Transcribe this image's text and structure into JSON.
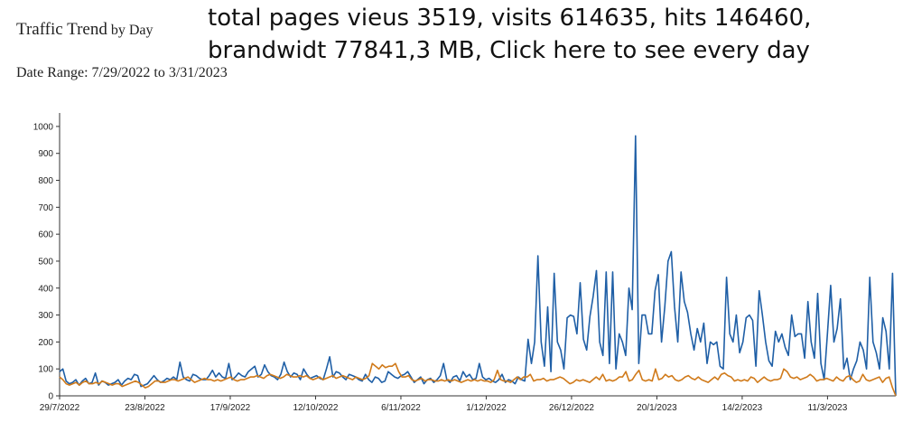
{
  "header": {
    "title": "Traffic Trend",
    "title_suffix": "by Day",
    "date_range": "Date Range: 7/29/2022 to 3/31/2023",
    "summary": "total pages vieus 3519, visits 614635, hits 146460, brandwidt 77841,3 MB, Click here to see every day"
  },
  "colors": {
    "series_a": "#1f5fa6",
    "series_b": "#d07a1a",
    "axis": "#333333"
  },
  "chart_data": {
    "type": "line",
    "title": "",
    "xlabel": "",
    "ylabel": "",
    "ylim": [
      0,
      1050
    ],
    "yticks": [
      0,
      100,
      200,
      300,
      400,
      500,
      600,
      700,
      800,
      900,
      1000
    ],
    "xlim": [
      0,
      245
    ],
    "xticks": [
      {
        "x": 0,
        "label": "29/7/2022"
      },
      {
        "x": 25,
        "label": "23/8/2022"
      },
      {
        "x": 50,
        "label": "17/9/2022"
      },
      {
        "x": 75,
        "label": "12/10/2022"
      },
      {
        "x": 100,
        "label": "6/11/2022"
      },
      {
        "x": 125,
        "label": "1/12/2022"
      },
      {
        "x": 150,
        "label": "26/12/2022"
      },
      {
        "x": 175,
        "label": "20/1/2023"
      },
      {
        "x": 200,
        "label": "14/2/2023"
      },
      {
        "x": 225,
        "label": "11/3/2023"
      }
    ],
    "grid": false,
    "legend": "none",
    "series": [
      {
        "color": "#1f5fa6",
        "values": [
          90,
          100,
          55,
          45,
          50,
          60,
          40,
          55,
          65,
          45,
          50,
          85,
          40,
          55,
          50,
          40,
          45,
          50,
          60,
          40,
          55,
          65,
          60,
          80,
          75,
          35,
          40,
          45,
          60,
          75,
          60,
          50,
          55,
          65,
          60,
          70,
          60,
          125,
          70,
          60,
          55,
          80,
          75,
          65,
          60,
          60,
          75,
          95,
          70,
          85,
          70,
          65,
          120,
          60,
          70,
          85,
          75,
          70,
          90,
          100,
          110,
          70,
          80,
          115,
          90,
          75,
          70,
          60,
          80,
          125,
          90,
          70,
          85,
          80,
          60,
          100,
          80,
          65,
          70,
          75,
          65,
          60,
          100,
          145,
          70,
          90,
          85,
          70,
          60,
          80,
          75,
          70,
          60,
          55,
          80,
          60,
          50,
          70,
          65,
          50,
          55,
          90,
          80,
          70,
          65,
          75,
          80,
          90,
          70,
          50,
          60,
          70,
          45,
          60,
          65,
          50,
          60,
          75,
          120,
          60,
          50,
          70,
          75,
          55,
          90,
          70,
          80,
          60,
          65,
          120,
          70,
          60,
          65,
          55,
          50,
          60,
          80,
          50,
          60,
          55,
          45,
          70,
          60,
          55,
          210,
          120,
          200,
          520,
          200,
          110,
          330,
          90,
          455,
          200,
          170,
          100,
          290,
          300,
          295,
          230,
          420,
          210,
          170,
          295,
          370,
          465,
          200,
          150,
          460,
          120,
          460,
          100,
          230,
          200,
          150,
          400,
          320,
          965,
          120,
          300,
          300,
          230,
          230,
          390,
          450,
          200,
          330,
          500,
          535,
          330,
          200,
          460,
          350,
          310,
          230,
          170,
          250,
          200,
          270,
          120,
          200,
          190,
          200,
          110,
          100,
          440,
          230,
          200,
          300,
          160,
          200,
          290,
          300,
          280,
          110,
          390,
          300,
          200,
          130,
          110,
          240,
          200,
          230,
          180,
          150,
          300,
          220,
          230,
          230,
          140,
          350,
          200,
          140,
          380,
          120,
          60,
          230,
          410,
          200,
          250,
          360,
          100,
          140,
          60,
          100,
          130,
          200,
          170,
          100,
          440,
          200,
          160,
          100,
          290,
          240,
          100,
          455,
          0
        ],
        "name": ""
      },
      {
        "color": "#d07a1a",
        "values": [
          70,
          60,
          45,
          40,
          45,
          50,
          40,
          50,
          55,
          45,
          45,
          50,
          45,
          55,
          50,
          45,
          40,
          45,
          45,
          35,
          40,
          45,
          50,
          55,
          50,
          40,
          30,
          35,
          45,
          55,
          55,
          50,
          50,
          55,
          60,
          60,
          55,
          60,
          65,
          70,
          60,
          50,
          55,
          60,
          65,
          60,
          60,
          55,
          60,
          55,
          60,
          65,
          70,
          60,
          55,
          60,
          60,
          65,
          70,
          70,
          75,
          70,
          65,
          75,
          80,
          75,
          70,
          65,
          70,
          80,
          75,
          70,
          70,
          75,
          70,
          75,
          65,
          60,
          65,
          70,
          60,
          65,
          70,
          75,
          65,
          70,
          75,
          70,
          65,
          60,
          70,
          65,
          60,
          65,
          75,
          120,
          110,
          100,
          115,
          105,
          110,
          110,
          120,
          90,
          70,
          70,
          75,
          60,
          55,
          60,
          65,
          55,
          60,
          60,
          55,
          55,
          60,
          55,
          60,
          55,
          60,
          55,
          50,
          55,
          60,
          55,
          60,
          55,
          60,
          55,
          55,
          50,
          60,
          95,
          60,
          55,
          55,
          50,
          60,
          70,
          60,
          70,
          70,
          80,
          55,
          60,
          60,
          65,
          55,
          60,
          60,
          65,
          70,
          65,
          55,
          45,
          50,
          60,
          55,
          60,
          55,
          50,
          60,
          70,
          60,
          80,
          55,
          60,
          55,
          60,
          70,
          70,
          90,
          55,
          60,
          80,
          95,
          60,
          55,
          60,
          55,
          100,
          60,
          65,
          80,
          70,
          75,
          60,
          55,
          60,
          70,
          75,
          65,
          60,
          70,
          60,
          55,
          50,
          60,
          70,
          60,
          80,
          85,
          75,
          70,
          55,
          60,
          55,
          60,
          55,
          70,
          65,
          50,
          60,
          70,
          60,
          55,
          60,
          60,
          65,
          100,
          90,
          70,
          65,
          70,
          60,
          65,
          70,
          80,
          70,
          55,
          60,
          60,
          65,
          60,
          55,
          70,
          60,
          55,
          70,
          75,
          60,
          50,
          55,
          80,
          60,
          55,
          60,
          65,
          70,
          50,
          65,
          70,
          30,
          0
        ],
        "name": ""
      }
    ]
  }
}
